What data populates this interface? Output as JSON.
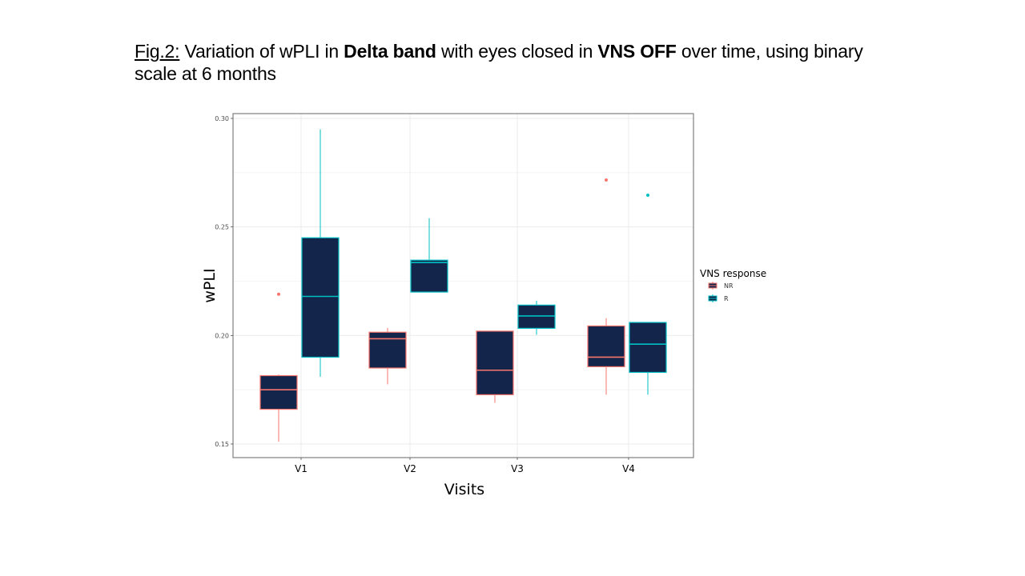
{
  "caption": {
    "fig_label": "Fig.2:",
    "part1": " Variation of wPLI in ",
    "bold1": "Delta band",
    "part2": " with eyes closed in ",
    "bold2": "VNS OFF",
    "part3": " over time, using binary scale at 6 months"
  },
  "chart_data": {
    "type": "boxplot",
    "title": "",
    "xlabel": "Visits",
    "ylabel": "wPLI",
    "categories": [
      "V1",
      "V2",
      "V3",
      "V4"
    ],
    "ylim": [
      0.142,
      0.302
    ],
    "yticks": [
      0.15,
      0.2,
      0.25,
      0.3
    ],
    "ytick_labels": [
      "0.15",
      "0.20",
      "0.25",
      "0.30"
    ],
    "grid": true,
    "legend": {
      "title": "VNS response",
      "position": "right",
      "entries": [
        "NR",
        "R"
      ]
    },
    "colors": {
      "NR": "#f8766d",
      "R": "#00bfc4",
      "fill": "#13254a"
    },
    "series": [
      {
        "name": "NR",
        "boxes": [
          {
            "category": "V1",
            "whisker_low": 0.151,
            "q1": 0.166,
            "median": 0.175,
            "q3": 0.1815,
            "whisker_high": 0.182,
            "outliers": [
              0.219
            ]
          },
          {
            "category": "V2",
            "whisker_low": 0.1775,
            "q1": 0.185,
            "median": 0.1985,
            "q3": 0.2015,
            "whisker_high": 0.2035,
            "outliers": []
          },
          {
            "category": "V3",
            "whisker_low": 0.169,
            "q1": 0.1727,
            "median": 0.184,
            "q3": 0.202,
            "whisker_high": 0.202,
            "outliers": []
          },
          {
            "category": "V4",
            "whisker_low": 0.1727,
            "q1": 0.1856,
            "median": 0.19,
            "q3": 0.2044,
            "whisker_high": 0.208,
            "outliers": [
              0.2716
            ]
          }
        ]
      },
      {
        "name": "R",
        "boxes": [
          {
            "category": "V1",
            "whisker_low": 0.181,
            "q1": 0.19,
            "median": 0.218,
            "q3": 0.245,
            "whisker_high": 0.295,
            "outliers": []
          },
          {
            "category": "V2",
            "whisker_low": 0.2199,
            "q1": 0.22,
            "median": 0.2336,
            "q3": 0.2347,
            "whisker_high": 0.254,
            "outliers": []
          },
          {
            "category": "V3",
            "whisker_low": 0.2003,
            "q1": 0.2033,
            "median": 0.209,
            "q3": 0.214,
            "whisker_high": 0.216,
            "outliers": []
          },
          {
            "category": "V4",
            "whisker_low": 0.1727,
            "q1": 0.183,
            "median": 0.196,
            "q3": 0.206,
            "whisker_high": 0.206,
            "outliers": [
              0.2646
            ]
          }
        ]
      }
    ]
  }
}
